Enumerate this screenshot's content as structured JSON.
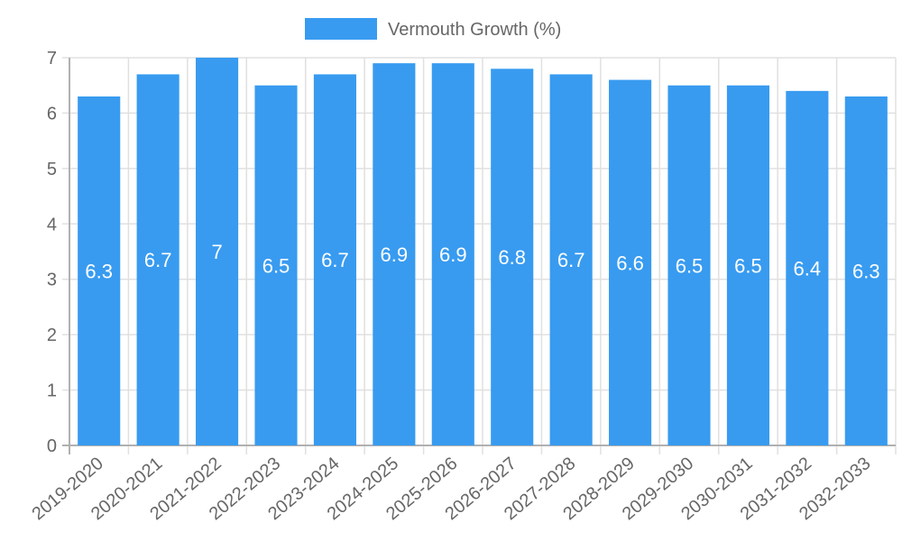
{
  "legend": {
    "label": "Vermouth Growth (%)",
    "color": "#389bf0"
  },
  "chart_data": {
    "type": "bar",
    "title": "",
    "xlabel": "",
    "ylabel": "",
    "ylim": [
      0,
      7
    ],
    "yticks": [
      0,
      1,
      2,
      3,
      4,
      5,
      6,
      7
    ],
    "grid": true,
    "legend_position": "top",
    "categories": [
      "2019-2020",
      "2020-2021",
      "2021-2022",
      "2022-2023",
      "2023-2024",
      "2024-2025",
      "2025-2026",
      "2026-2027",
      "2027-2028",
      "2028-2029",
      "2029-2030",
      "2030-2031",
      "2031-2032",
      "2032-2033"
    ],
    "series": [
      {
        "name": "Vermouth Growth (%)",
        "color": "#389bf0",
        "values": [
          6.3,
          6.7,
          7,
          6.5,
          6.7,
          6.9,
          6.9,
          6.8,
          6.7,
          6.6,
          6.5,
          6.5,
          6.4,
          6.3
        ]
      }
    ],
    "data_labels": [
      "6.3",
      "6.7",
      "7",
      "6.5",
      "6.7",
      "6.9",
      "6.9",
      "6.8",
      "6.7",
      "6.6",
      "6.5",
      "6.5",
      "6.4",
      "6.3"
    ]
  }
}
